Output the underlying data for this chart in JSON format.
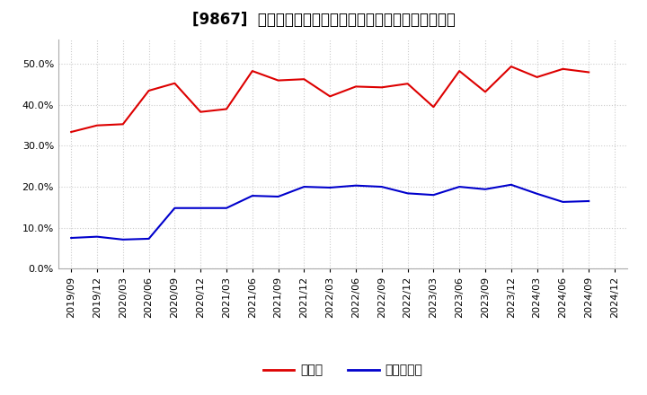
{
  "title": "[9867]  現頲金、有利子負債の総資産に対する比率の推移",
  "x_labels": [
    "2019/09",
    "2019/12",
    "2020/03",
    "2020/06",
    "2020/09",
    "2020/12",
    "2021/03",
    "2021/06",
    "2021/09",
    "2021/12",
    "2022/03",
    "2022/06",
    "2022/09",
    "2022/12",
    "2023/03",
    "2023/06",
    "2023/09",
    "2023/12",
    "2024/03",
    "2024/06",
    "2024/09"
  ],
  "cash": [
    0.334,
    0.35,
    0.353,
    0.435,
    0.453,
    0.383,
    0.39,
    0.483,
    0.46,
    0.463,
    0.421,
    0.445,
    0.443,
    0.452,
    0.395,
    0.483,
    0.432,
    0.494,
    0.468,
    0.488,
    0.48
  ],
  "debt": [
    0.075,
    0.078,
    0.071,
    0.073,
    0.148,
    0.148,
    0.148,
    0.178,
    0.176,
    0.2,
    0.198,
    0.203,
    0.2,
    0.184,
    0.18,
    0.2,
    0.194,
    0.205,
    0.183,
    0.163,
    0.165
  ],
  "cash_color": "#dd0000",
  "debt_color": "#0000cc",
  "plot_bg_color": "#ffffff",
  "fig_bg_color": "#ffffff",
  "grid_color": "#cccccc",
  "legend_cash": "現頲金",
  "legend_debt": "有利子負債",
  "ylim_min": 0.0,
  "ylim_max": 0.56,
  "yticks": [
    0.0,
    0.1,
    0.2,
    0.3,
    0.4,
    0.5
  ],
  "title_fontsize": 12,
  "legend_fontsize": 10,
  "tick_fontsize": 8,
  "line_width": 1.5,
  "extra_x_labels": [
    "2024/12"
  ]
}
